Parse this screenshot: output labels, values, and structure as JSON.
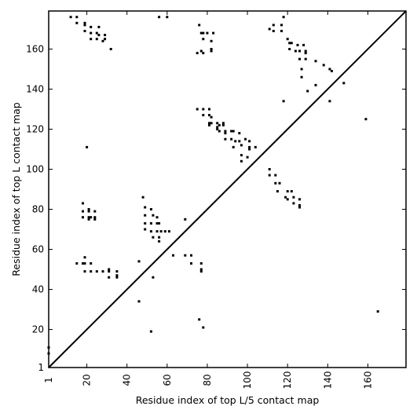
{
  "chart_data": {
    "type": "scatter",
    "title": "",
    "xlabel": "Residue index of top L/5 contact map",
    "ylabel": "Residue index of top L contact map",
    "xlim": [
      1,
      179
    ],
    "ylim": [
      1,
      179
    ],
    "x_ticks": [
      1,
      20,
      40,
      60,
      80,
      100,
      120,
      140,
      160
    ],
    "y_ticks": [
      1,
      20,
      40,
      60,
      80,
      100,
      120,
      140,
      160
    ],
    "x_tick_labels": [
      "1",
      "20",
      "40",
      "60",
      "80",
      "100",
      "120",
      "140",
      "160"
    ],
    "y_tick_labels": [
      "1",
      "20",
      "40",
      "60",
      "80",
      "100",
      "120",
      "140",
      "160"
    ],
    "x_tick_rotation_deg": -90,
    "grid": false,
    "diagonal": true,
    "marker": "square",
    "marker_color": "#000000",
    "series": [
      {
        "points_upper_left": [
          [
            12,
            176
          ],
          [
            15,
            176
          ],
          [
            56,
            176
          ],
          [
            60,
            176
          ],
          [
            118,
            176
          ],
          [
            15,
            173
          ],
          [
            19,
            173
          ],
          [
            19,
            172
          ],
          [
            22,
            171
          ],
          [
            26,
            171
          ],
          [
            76,
            172
          ],
          [
            113,
            172
          ],
          [
            117,
            172
          ],
          [
            111,
            170
          ],
          [
            117,
            169
          ],
          [
            113,
            169
          ],
          [
            19,
            169
          ],
          [
            22,
            168
          ],
          [
            25,
            168
          ],
          [
            26,
            167
          ],
          [
            29,
            167
          ],
          [
            77,
            168
          ],
          [
            78,
            168
          ],
          [
            80,
            168
          ],
          [
            83,
            168
          ],
          [
            22,
            165
          ],
          [
            25,
            165
          ],
          [
            29,
            165
          ],
          [
            28,
            164
          ],
          [
            78,
            165
          ],
          [
            82,
            164
          ],
          [
            120,
            165
          ],
          [
            121,
            163
          ],
          [
            122,
            163
          ],
          [
            125,
            162
          ],
          [
            128,
            162
          ],
          [
            121,
            160
          ],
          [
            124,
            159
          ],
          [
            126,
            159
          ],
          [
            129,
            159
          ],
          [
            129,
            158
          ],
          [
            32,
            160
          ],
          [
            82,
            160
          ],
          [
            82,
            159
          ],
          [
            77,
            159
          ],
          [
            75,
            158
          ],
          [
            78,
            158
          ],
          [
            126,
            155
          ],
          [
            129,
            155
          ],
          [
            134,
            154
          ],
          [
            138,
            152
          ],
          [
            141,
            150
          ],
          [
            142,
            149
          ],
          [
            127,
            150
          ],
          [
            127,
            146
          ],
          [
            148,
            143
          ],
          [
            134,
            142
          ],
          [
            130,
            139
          ],
          [
            118,
            134
          ],
          [
            141,
            134
          ],
          [
            159,
            125
          ],
          [
            75,
            130
          ],
          [
            78,
            130
          ],
          [
            81,
            130
          ],
          [
            78,
            127
          ],
          [
            81,
            127
          ],
          [
            82,
            126
          ],
          [
            81,
            123
          ],
          [
            82,
            123
          ],
          [
            85,
            123
          ],
          [
            88,
            123
          ],
          [
            86,
            122
          ],
          [
            88,
            122
          ],
          [
            81,
            122
          ],
          [
            85,
            121
          ],
          [
            85,
            120
          ],
          [
            86,
            119
          ],
          [
            89,
            119
          ],
          [
            89,
            118
          ],
          [
            92,
            119
          ],
          [
            93,
            119
          ],
          [
            96,
            118
          ],
          [
            89,
            115
          ],
          [
            92,
            115
          ],
          [
            94,
            114
          ],
          [
            96,
            114
          ],
          [
            99,
            115
          ],
          [
            97,
            112
          ],
          [
            101,
            114
          ],
          [
            101,
            111
          ],
          [
            101,
            110
          ],
          [
            93,
            111
          ],
          [
            104,
            111
          ],
          [
            97,
            107
          ],
          [
            97,
            104
          ],
          [
            100,
            106
          ],
          [
            111,
            100
          ],
          [
            111,
            97
          ],
          [
            114,
            97
          ],
          [
            114,
            93
          ],
          [
            116,
            93
          ],
          [
            115,
            89
          ],
          [
            120,
            89
          ],
          [
            122,
            89
          ],
          [
            119,
            86
          ],
          [
            120,
            85
          ],
          [
            123,
            86
          ],
          [
            123,
            83
          ],
          [
            126,
            85
          ],
          [
            126,
            82
          ],
          [
            126,
            81
          ],
          [
            20,
            111
          ]
        ],
        "points_lower_right": [
          [
            18,
            83
          ],
          [
            18,
            79
          ],
          [
            21,
            80
          ],
          [
            21,
            79
          ],
          [
            21,
            76
          ],
          [
            24,
            79
          ],
          [
            22,
            76
          ],
          [
            18,
            76
          ],
          [
            24,
            76
          ],
          [
            24,
            75
          ],
          [
            21,
            75
          ],
          [
            48,
            86
          ],
          [
            49,
            81
          ],
          [
            49,
            77
          ],
          [
            52,
            80
          ],
          [
            53,
            77
          ],
          [
            55,
            76
          ],
          [
            49,
            73
          ],
          [
            52,
            73
          ],
          [
            55,
            73
          ],
          [
            56,
            73
          ],
          [
            49,
            70
          ],
          [
            52,
            69
          ],
          [
            55,
            69
          ],
          [
            57,
            69
          ],
          [
            59,
            69
          ],
          [
            61,
            69
          ],
          [
            53,
            66
          ],
          [
            56,
            66
          ],
          [
            56,
            64
          ],
          [
            69,
            75
          ],
          [
            19,
            56
          ],
          [
            15,
            53
          ],
          [
            18,
            53
          ],
          [
            19,
            53
          ],
          [
            22,
            53
          ],
          [
            28,
            49
          ],
          [
            31,
            49
          ],
          [
            19,
            49
          ],
          [
            22,
            49
          ],
          [
            25,
            49
          ],
          [
            31,
            50
          ],
          [
            31,
            46
          ],
          [
            35,
            49
          ],
          [
            35,
            47
          ],
          [
            35,
            46
          ],
          [
            46,
            54
          ],
          [
            53,
            46
          ],
          [
            63,
            57
          ],
          [
            69,
            57
          ],
          [
            72,
            57
          ],
          [
            72,
            53
          ],
          [
            77,
            53
          ],
          [
            77,
            49
          ],
          [
            77,
            50
          ],
          [
            46,
            34
          ],
          [
            76,
            25
          ],
          [
            78,
            21
          ],
          [
            52,
            19
          ],
          [
            1,
            11
          ],
          [
            1,
            8
          ],
          [
            165,
            29
          ]
        ]
      }
    ]
  }
}
